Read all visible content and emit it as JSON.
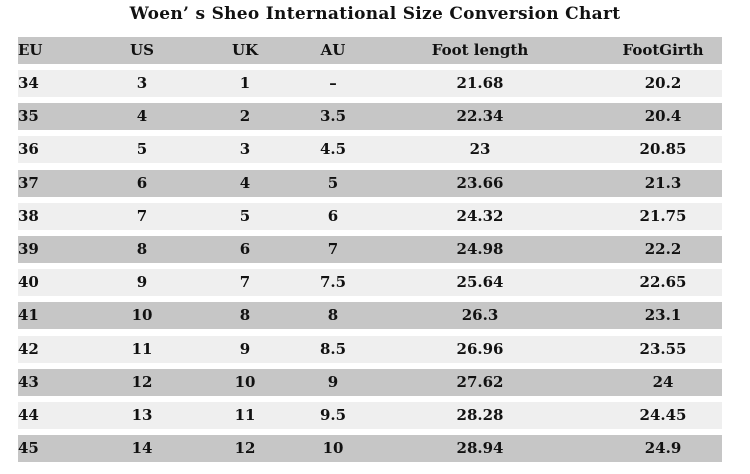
{
  "title": "Woen’ s Sheo International Size Conversion Chart",
  "columns": [
    "EU",
    "US",
    "UK",
    "AU",
    "Foot length",
    "FootGirth"
  ],
  "rows": [
    [
      "34",
      "3",
      "1",
      "–",
      "21.68",
      "20.2"
    ],
    [
      "35",
      "4",
      "2",
      "3.5",
      "22.34",
      "20.4"
    ],
    [
      "36",
      "5",
      "3",
      "4.5",
      "23",
      "20.85"
    ],
    [
      "37",
      "6",
      "4",
      "5",
      "23.66",
      "21.3"
    ],
    [
      "38",
      "7",
      "5",
      "6",
      "24.32",
      "21.75"
    ],
    [
      "39",
      "8",
      "6",
      "7",
      "24.98",
      "22.2"
    ],
    [
      "40",
      "9",
      "7",
      "7.5",
      "25.64",
      "22.65"
    ],
    [
      "41",
      "10",
      "8",
      "8",
      "26.3",
      "23.1"
    ],
    [
      "42",
      "11",
      "9",
      "8.5",
      "26.96",
      "23.55"
    ],
    [
      "43",
      "12",
      "10",
      "9",
      "27.62",
      "24"
    ],
    [
      "44",
      "13",
      "11",
      "9.5",
      "28.28",
      "24.45"
    ],
    [
      "45",
      "14",
      "12",
      "10",
      "28.94",
      "24.9"
    ]
  ],
  "colors": {
    "gray_row": "#c6c6c6",
    "light_row": "#efefef"
  }
}
